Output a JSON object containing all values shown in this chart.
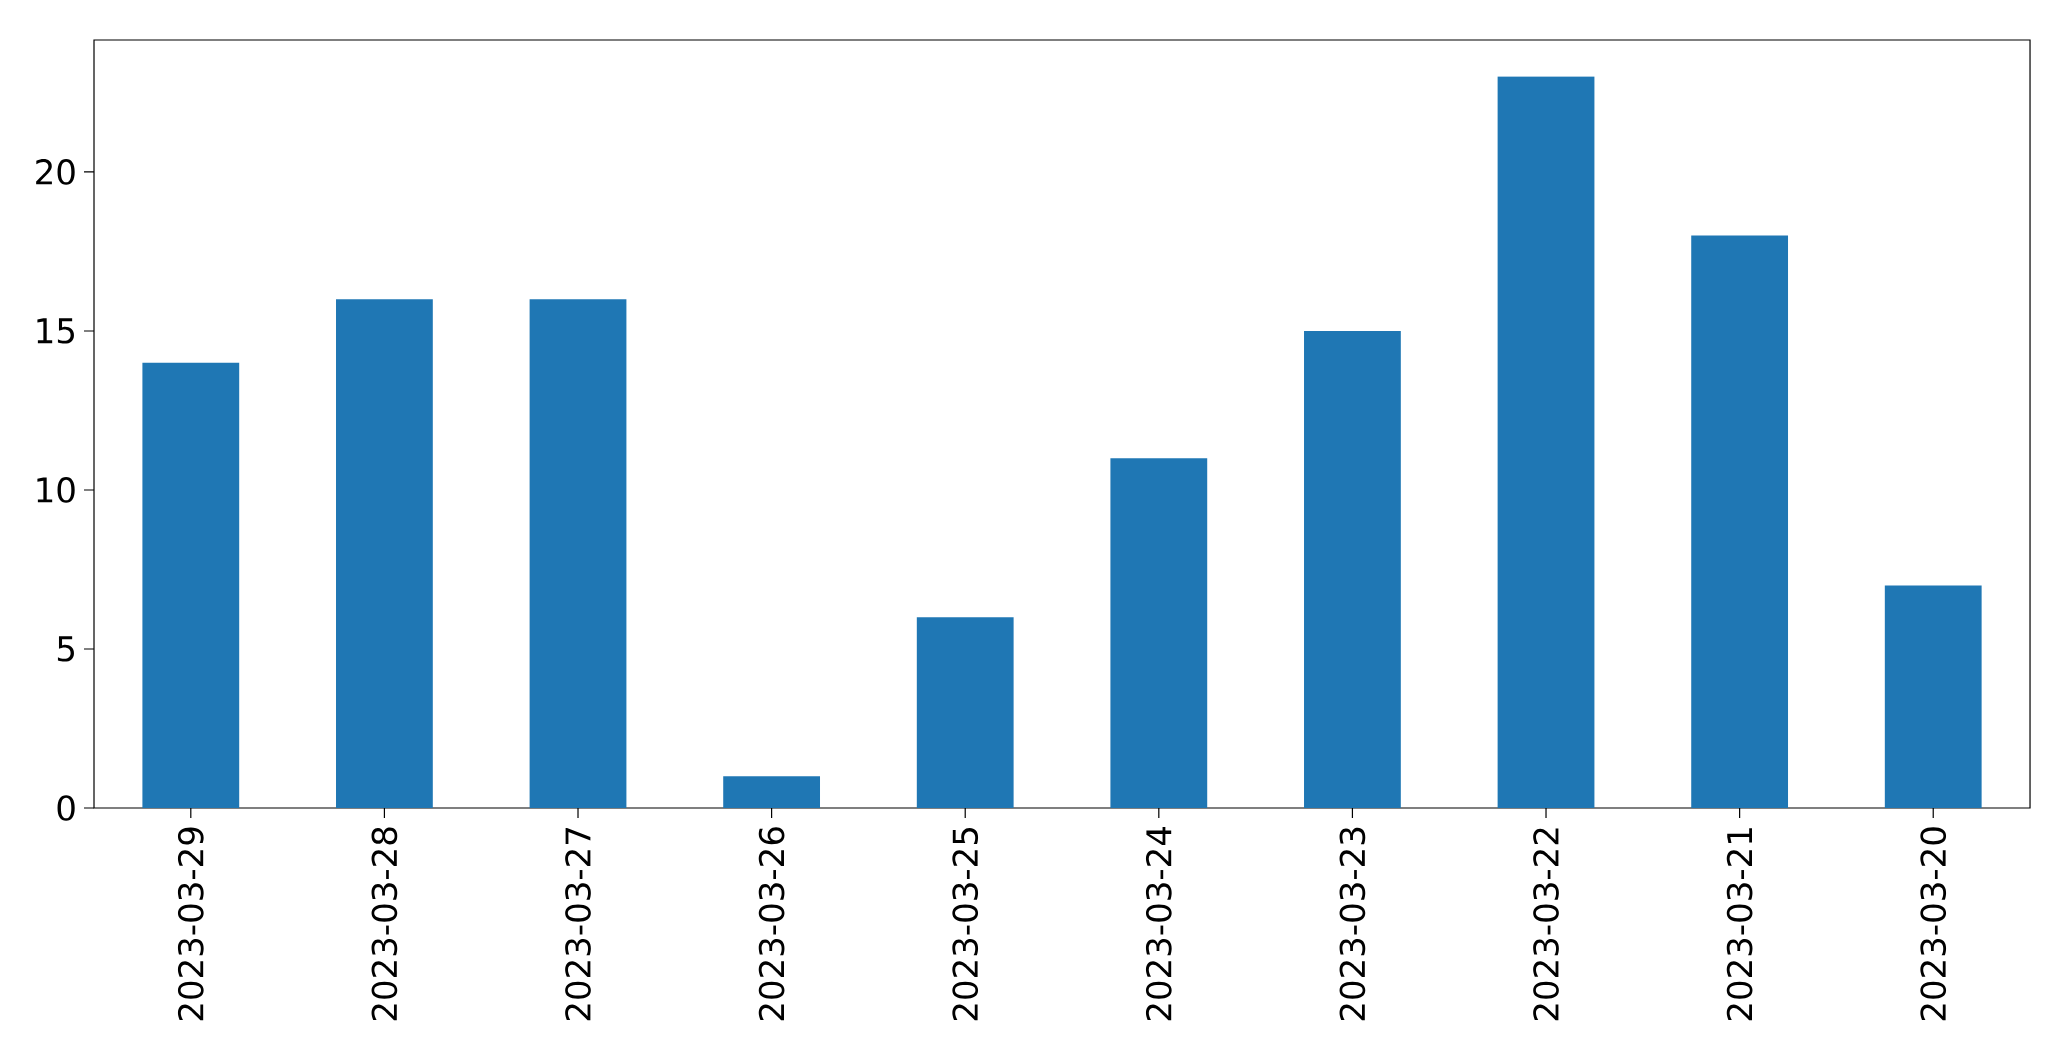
{
  "chart_data": {
    "type": "bar",
    "categories": [
      "2023-03-29",
      "2023-03-28",
      "2023-03-27",
      "2023-03-26",
      "2023-03-25",
      "2023-03-24",
      "2023-03-23",
      "2023-03-22",
      "2023-03-21",
      "2023-03-20"
    ],
    "values": [
      14,
      16,
      16,
      1,
      6,
      11,
      15,
      23,
      18,
      7
    ],
    "color": "#1f77b4",
    "ylim": [
      0,
      24.15
    ],
    "yticks": [
      0,
      5,
      10,
      15,
      20
    ]
  }
}
